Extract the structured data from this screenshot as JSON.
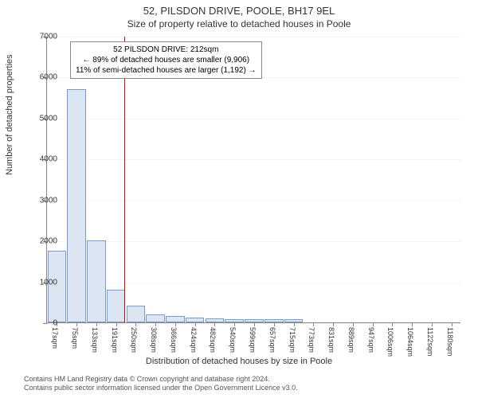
{
  "title": "52, PILSDON DRIVE, POOLE, BH17 9EL",
  "subtitle": "Size of property relative to detached houses in Poole",
  "y_axis_label": "Number of detached properties",
  "x_axis_label": "Distribution of detached houses by size in Poole",
  "footer_line1": "Contains HM Land Registry data © Crown copyright and database right 2024.",
  "footer_line2": "Contains public sector information licensed under the Open Government Licence v3.0.",
  "chart": {
    "type": "histogram",
    "background_color": "#ffffff",
    "grid_color": "#d0d0d0",
    "axis_color": "#888888",
    "bar_fill": "#dce6f2",
    "bar_stroke": "#7a9cc6",
    "ylim": [
      0,
      7000
    ],
    "ytick_step": 1000,
    "yticks": [
      0,
      1000,
      2000,
      3000,
      4000,
      5000,
      6000,
      7000
    ],
    "x_categories": [
      "17sqm",
      "75sqm",
      "133sqm",
      "191sqm",
      "250sqm",
      "308sqm",
      "366sqm",
      "424sqm",
      "482sqm",
      "540sqm",
      "599sqm",
      "657sqm",
      "715sqm",
      "773sqm",
      "831sqm",
      "889sqm",
      "947sqm",
      "1006sqm",
      "1064sqm",
      "1122sqm",
      "1180sqm"
    ],
    "values": [
      1750,
      5700,
      2000,
      800,
      400,
      200,
      150,
      120,
      100,
      80,
      80,
      70,
      70,
      0,
      0,
      0,
      0,
      0,
      0,
      0,
      0
    ],
    "reference_line": {
      "position_index": 3.4,
      "color": "#cc0000",
      "width": 1
    },
    "annotation": {
      "lines": [
        "52 PILSDON DRIVE: 212sqm",
        "← 89% of detached houses are smaller (9,906)",
        "11% of semi-detached houses are larger (1,192) →"
      ],
      "border_color": "#888888",
      "background": "#ffffff",
      "fontsize": 10
    },
    "label_fontsize": 11,
    "tick_fontsize": 10,
    "title_fontsize": 13
  }
}
